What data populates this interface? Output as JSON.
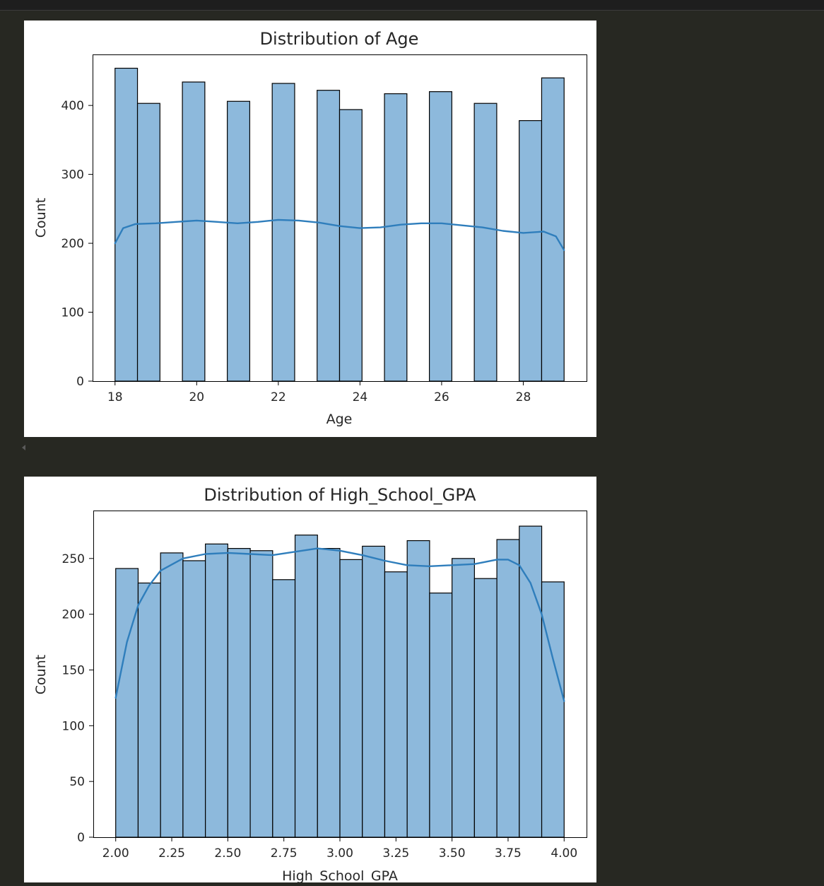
{
  "chart_data": [
    {
      "type": "bar",
      "title": "Distribution of Age",
      "xlabel": "Age",
      "ylabel": "Count",
      "xlim": [
        17.45,
        29.55
      ],
      "ylim": [
        0,
        474
      ],
      "xticks": [
        18,
        20,
        22,
        24,
        26,
        28
      ],
      "xtick_labels": [
        "18",
        "20",
        "22",
        "24",
        "26",
        "28"
      ],
      "yticks": [
        0,
        100,
        200,
        300,
        400
      ],
      "ytick_labels": [
        "0",
        "100",
        "200",
        "300",
        "400"
      ],
      "bins": [
        [
          18.0,
          18.55
        ],
        [
          18.55,
          19.1
        ],
        [
          19.1,
          19.65
        ],
        [
          19.65,
          20.2
        ],
        [
          20.2,
          20.75
        ],
        [
          20.75,
          21.3
        ],
        [
          21.3,
          21.85
        ],
        [
          21.85,
          22.4
        ],
        [
          22.4,
          22.95
        ],
        [
          22.95,
          23.5
        ],
        [
          23.5,
          24.05
        ],
        [
          24.05,
          24.6
        ],
        [
          24.6,
          25.15
        ],
        [
          25.15,
          25.7
        ],
        [
          25.7,
          26.25
        ],
        [
          26.25,
          26.8
        ],
        [
          26.8,
          27.35
        ],
        [
          27.35,
          27.9
        ],
        [
          27.9,
          28.45
        ],
        [
          28.45,
          29.0
        ]
      ],
      "values": [
        454,
        403,
        0,
        434,
        0,
        406,
        0,
        432,
        0,
        422,
        394,
        0,
        417,
        0,
        420,
        0,
        403,
        0,
        378,
        440
      ],
      "kde": {
        "x": [
          18.0,
          18.2,
          18.5,
          19.0,
          19.5,
          20.0,
          20.5,
          21.0,
          21.5,
          22.0,
          22.5,
          23.0,
          23.5,
          24.0,
          24.5,
          25.0,
          25.5,
          26.0,
          26.5,
          27.0,
          27.5,
          28.0,
          28.5,
          28.8,
          29.0
        ],
        "y": [
          200,
          222,
          228,
          229,
          231,
          233,
          231,
          229,
          231,
          234,
          233,
          230,
          225,
          222,
          223,
          227,
          229,
          229,
          226,
          223,
          218,
          215,
          217,
          210,
          190
        ]
      },
      "bar_color": "#8db9dc",
      "edge_color": "#000000",
      "line_color": "#2f7ebc",
      "grid": false
    },
    {
      "type": "bar",
      "title": "Distribution of High_School_GPA",
      "xlabel": "High_School_GPA",
      "ylabel": "Count",
      "xlim": [
        1.9,
        4.1
      ],
      "ylim": [
        0,
        293
      ],
      "xticks": [
        2.0,
        2.25,
        2.5,
        2.75,
        3.0,
        3.25,
        3.5,
        3.75,
        4.0
      ],
      "xtick_labels": [
        "2.00",
        "2.25",
        "2.50",
        "2.75",
        "3.00",
        "3.25",
        "3.50",
        "3.75",
        "4.00"
      ],
      "yticks": [
        0,
        50,
        100,
        150,
        200,
        250
      ],
      "ytick_labels": [
        "0",
        "50",
        "100",
        "150",
        "200",
        "250"
      ],
      "bins": [
        [
          2.0,
          2.1
        ],
        [
          2.1,
          2.2
        ],
        [
          2.2,
          2.3
        ],
        [
          2.3,
          2.4
        ],
        [
          2.4,
          2.5
        ],
        [
          2.5,
          2.6
        ],
        [
          2.6,
          2.7
        ],
        [
          2.7,
          2.8
        ],
        [
          2.8,
          2.9
        ],
        [
          2.9,
          3.0
        ],
        [
          3.0,
          3.1
        ],
        [
          3.1,
          3.2
        ],
        [
          3.2,
          3.3
        ],
        [
          3.3,
          3.4
        ],
        [
          3.4,
          3.5
        ],
        [
          3.5,
          3.6
        ],
        [
          3.6,
          3.7
        ],
        [
          3.7,
          3.8
        ],
        [
          3.8,
          3.9
        ],
        [
          3.9,
          4.0
        ]
      ],
      "values": [
        241,
        228,
        255,
        248,
        263,
        259,
        257,
        231,
        271,
        259,
        249,
        261,
        238,
        266,
        219,
        250,
        232,
        267,
        279,
        229
      ],
      "kde": {
        "x": [
          2.0,
          2.05,
          2.1,
          2.15,
          2.2,
          2.3,
          2.4,
          2.5,
          2.6,
          2.7,
          2.8,
          2.9,
          3.0,
          3.1,
          3.2,
          3.3,
          3.4,
          3.5,
          3.6,
          3.7,
          3.75,
          3.8,
          3.85,
          3.9,
          3.95,
          4.0
        ],
        "y": [
          125,
          175,
          208,
          226,
          239,
          250,
          254,
          255,
          254,
          253,
          256,
          259,
          257,
          253,
          248,
          244,
          243,
          244,
          245,
          249,
          249,
          244,
          228,
          200,
          160,
          122
        ]
      },
      "bar_color": "#8db9dc",
      "edge_color": "#000000",
      "line_color": "#2f7ebc",
      "grid": false
    }
  ]
}
